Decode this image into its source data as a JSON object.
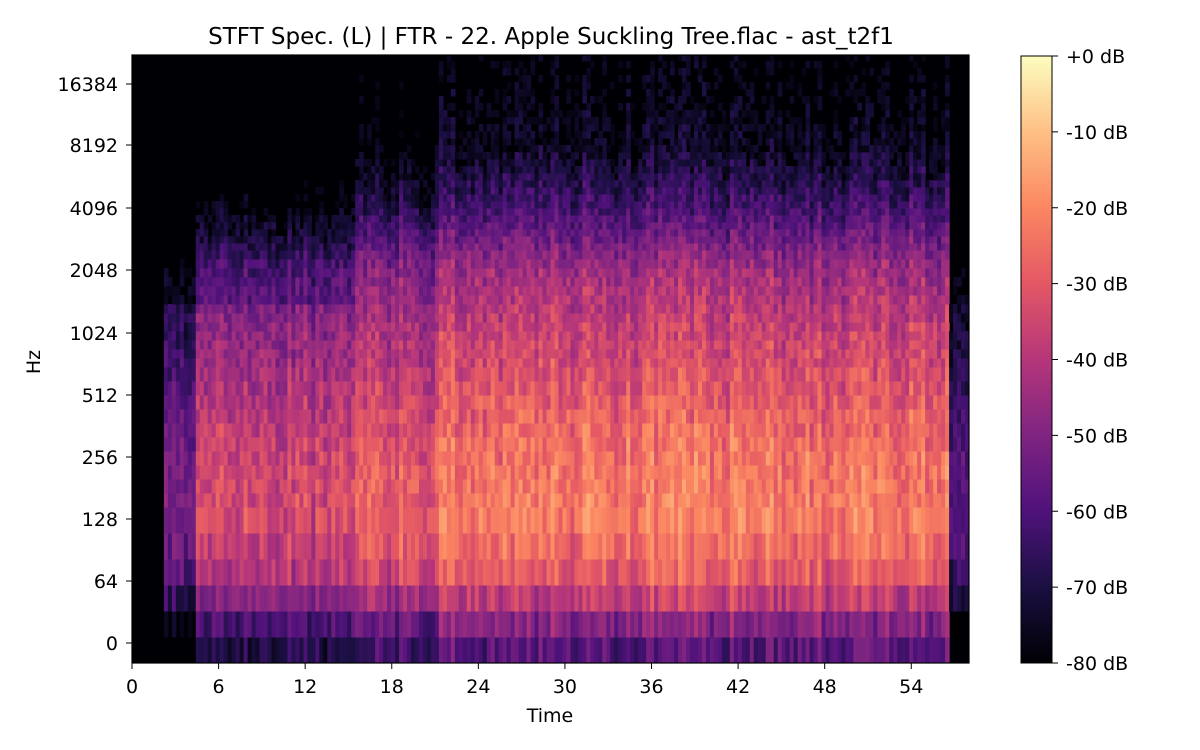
{
  "chart_data": {
    "type": "heatmap",
    "title": "STFT Spec. (L) | FTR - 22. Apple Suckling Tree.flac - ast_t2f1",
    "xlabel": "Time",
    "ylabel": "Hz",
    "x_scale": "linear",
    "y_scale": "symlog",
    "xlim": [
      0,
      58
    ],
    "x_ticks": [
      0,
      6,
      12,
      18,
      24,
      30,
      36,
      42,
      48,
      54
    ],
    "y_ticks": [
      0,
      64,
      128,
      256,
      512,
      1024,
      2048,
      4096,
      8192,
      16384
    ],
    "colormap": "magma",
    "colorbar": {
      "range": [
        -80,
        0
      ],
      "ticks": [
        "+0 dB",
        "-10 dB",
        "-20 dB",
        "-30 dB",
        "-40 dB",
        "-50 dB",
        "-60 dB",
        "-70 dB",
        "-80 dB"
      ]
    },
    "grid": false,
    "description_of_content": null,
    "time_sections": [
      {
        "start": 0,
        "end": 2.2,
        "level_db": -80
      },
      {
        "start": 2.2,
        "end": 4.5,
        "level_db": -55
      },
      {
        "start": 4.5,
        "end": 15.5,
        "level_db": -38
      },
      {
        "start": 15.5,
        "end": 21,
        "level_db": -32
      },
      {
        "start": 21,
        "end": 56.5,
        "level_db": -26
      },
      {
        "start": 56.5,
        "end": 58,
        "level_db": -62
      }
    ],
    "frequency_profile_db": [
      {
        "hz": 0,
        "level_db": -58
      },
      {
        "hz": 64,
        "level_db": -30
      },
      {
        "hz": 128,
        "level_db": -22
      },
      {
        "hz": 256,
        "level_db": -24
      },
      {
        "hz": 512,
        "level_db": -30
      },
      {
        "hz": 1024,
        "level_db": -36
      },
      {
        "hz": 2048,
        "level_db": -44
      },
      {
        "hz": 4096,
        "level_db": -62
      },
      {
        "hz": 8192,
        "level_db": -76
      },
      {
        "hz": 16384,
        "level_db": -80
      }
    ]
  }
}
